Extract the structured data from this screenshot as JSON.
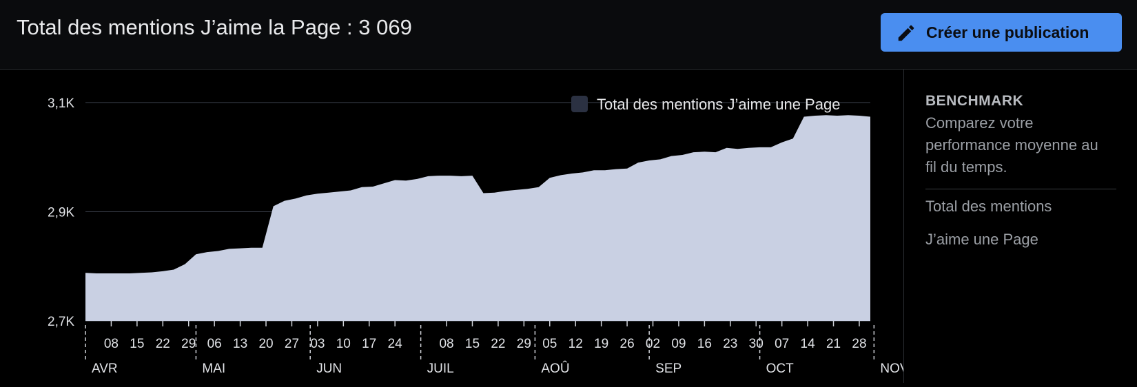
{
  "header": {
    "title": "Total des mentions J’aime la Page : 3 069",
    "create_button_label": "Créer une publication"
  },
  "benchmark": {
    "heading": "BENCHMARK",
    "description": "Comparez votre performance moyenne au fil du temps.",
    "metric_line1": "Total des mentions",
    "metric_line2": "J’aime une Page"
  },
  "colors": {
    "background": "#000000",
    "header_bg": "#0a0b0d",
    "accent_button": "#4a8ef0",
    "area_fill": "#c9d0e3",
    "legend_swatch": "#2b3142",
    "text": "#e8e9eb",
    "muted_text": "#9b9fa5"
  },
  "icons": {
    "create_button": "pencil-icon"
  },
  "chart_data": {
    "type": "area",
    "legend": [
      "Total des mentions J’aime une Page"
    ],
    "legend_position": "top-right",
    "y_ticks": [
      {
        "value": 2700,
        "label": "2,7K"
      },
      {
        "value": 2900,
        "label": "2,9K"
      },
      {
        "value": 3100,
        "label": "3,1K"
      }
    ],
    "ylim": [
      2700,
      3110
    ],
    "xlim": [
      "2023-04-01",
      "2023-10-31"
    ],
    "x_tick_labels": [
      {
        "date": "2023-04-08",
        "label": "08"
      },
      {
        "date": "2023-04-15",
        "label": "15"
      },
      {
        "date": "2023-04-22",
        "label": "22"
      },
      {
        "date": "2023-04-29",
        "label": "29"
      },
      {
        "date": "2023-05-06",
        "label": "06"
      },
      {
        "date": "2023-05-13",
        "label": "13"
      },
      {
        "date": "2023-05-20",
        "label": "20"
      },
      {
        "date": "2023-05-27",
        "label": "27"
      },
      {
        "date": "2023-06-03",
        "label": "03"
      },
      {
        "date": "2023-06-10",
        "label": "10"
      },
      {
        "date": "2023-06-17",
        "label": "17"
      },
      {
        "date": "2023-06-24",
        "label": "24"
      },
      {
        "date": "2023-07-08",
        "label": "08"
      },
      {
        "date": "2023-07-15",
        "label": "15"
      },
      {
        "date": "2023-07-22",
        "label": "22"
      },
      {
        "date": "2023-07-29",
        "label": "29"
      },
      {
        "date": "2023-08-05",
        "label": "05"
      },
      {
        "date": "2023-08-12",
        "label": "12"
      },
      {
        "date": "2023-08-19",
        "label": "19"
      },
      {
        "date": "2023-08-26",
        "label": "26"
      },
      {
        "date": "2023-09-02",
        "label": "02"
      },
      {
        "date": "2023-09-09",
        "label": "09"
      },
      {
        "date": "2023-09-16",
        "label": "16"
      },
      {
        "date": "2023-09-23",
        "label": "23"
      },
      {
        "date": "2023-09-30",
        "label": "30"
      },
      {
        "date": "2023-10-07",
        "label": "07"
      },
      {
        "date": "2023-10-14",
        "label": "14"
      },
      {
        "date": "2023-10-21",
        "label": "21"
      },
      {
        "date": "2023-10-28",
        "label": "28"
      }
    ],
    "month_labels": [
      {
        "date": "2023-04-01",
        "label": "AVR"
      },
      {
        "date": "2023-05-01",
        "label": "MAI"
      },
      {
        "date": "2023-06-01",
        "label": "JUN"
      },
      {
        "date": "2023-07-01",
        "label": "JUIL"
      },
      {
        "date": "2023-08-01",
        "label": "AOÛ"
      },
      {
        "date": "2023-09-01",
        "label": "SEP"
      },
      {
        "date": "2023-10-01",
        "label": "OCT"
      },
      {
        "date": "2023-11-01",
        "label": "NOV"
      }
    ],
    "series": [
      {
        "name": "Total des mentions J’aime une Page",
        "points": [
          [
            "2023-04-01",
            2788
          ],
          [
            "2023-04-04",
            2787
          ],
          [
            "2023-04-07",
            2787
          ],
          [
            "2023-04-10",
            2787
          ],
          [
            "2023-04-13",
            2787
          ],
          [
            "2023-04-16",
            2788
          ],
          [
            "2023-04-19",
            2789
          ],
          [
            "2023-04-22",
            2791
          ],
          [
            "2023-04-25",
            2794
          ],
          [
            "2023-04-28",
            2804
          ],
          [
            "2023-05-01",
            2822
          ],
          [
            "2023-05-04",
            2826
          ],
          [
            "2023-05-07",
            2828
          ],
          [
            "2023-05-10",
            2832
          ],
          [
            "2023-05-13",
            2833
          ],
          [
            "2023-05-16",
            2834
          ],
          [
            "2023-05-19",
            2834
          ],
          [
            "2023-05-22",
            2910
          ],
          [
            "2023-05-25",
            2920
          ],
          [
            "2023-05-28",
            2924
          ],
          [
            "2023-05-31",
            2930
          ],
          [
            "2023-06-03",
            2933
          ],
          [
            "2023-06-06",
            2935
          ],
          [
            "2023-06-09",
            2937
          ],
          [
            "2023-06-12",
            2939
          ],
          [
            "2023-06-15",
            2945
          ],
          [
            "2023-06-18",
            2946
          ],
          [
            "2023-06-21",
            2952
          ],
          [
            "2023-06-24",
            2958
          ],
          [
            "2023-06-27",
            2957
          ],
          [
            "2023-06-30",
            2960
          ],
          [
            "2023-07-03",
            2965
          ],
          [
            "2023-07-06",
            2966
          ],
          [
            "2023-07-09",
            2966
          ],
          [
            "2023-07-12",
            2965
          ],
          [
            "2023-07-15",
            2966
          ],
          [
            "2023-07-18",
            2934
          ],
          [
            "2023-07-21",
            2935
          ],
          [
            "2023-07-24",
            2938
          ],
          [
            "2023-07-27",
            2940
          ],
          [
            "2023-07-30",
            2942
          ],
          [
            "2023-08-02",
            2945
          ],
          [
            "2023-08-05",
            2962
          ],
          [
            "2023-08-08",
            2967
          ],
          [
            "2023-08-11",
            2970
          ],
          [
            "2023-08-14",
            2972
          ],
          [
            "2023-08-17",
            2976
          ],
          [
            "2023-08-20",
            2976
          ],
          [
            "2023-08-23",
            2978
          ],
          [
            "2023-08-26",
            2979
          ],
          [
            "2023-08-29",
            2990
          ],
          [
            "2023-09-01",
            2994
          ],
          [
            "2023-09-04",
            2996
          ],
          [
            "2023-09-07",
            3002
          ],
          [
            "2023-09-10",
            3004
          ],
          [
            "2023-09-13",
            3009
          ],
          [
            "2023-09-16",
            3010
          ],
          [
            "2023-09-19",
            3009
          ],
          [
            "2023-09-22",
            3017
          ],
          [
            "2023-09-25",
            3015
          ],
          [
            "2023-09-28",
            3017
          ],
          [
            "2023-10-01",
            3018
          ],
          [
            "2023-10-04",
            3018
          ],
          [
            "2023-10-07",
            3027
          ],
          [
            "2023-10-10",
            3034
          ],
          [
            "2023-10-13",
            3074
          ],
          [
            "2023-10-16",
            3076
          ],
          [
            "2023-10-19",
            3077
          ],
          [
            "2023-10-22",
            3076
          ],
          [
            "2023-10-25",
            3077
          ],
          [
            "2023-10-28",
            3076
          ],
          [
            "2023-10-31",
            3074
          ]
        ]
      }
    ]
  }
}
